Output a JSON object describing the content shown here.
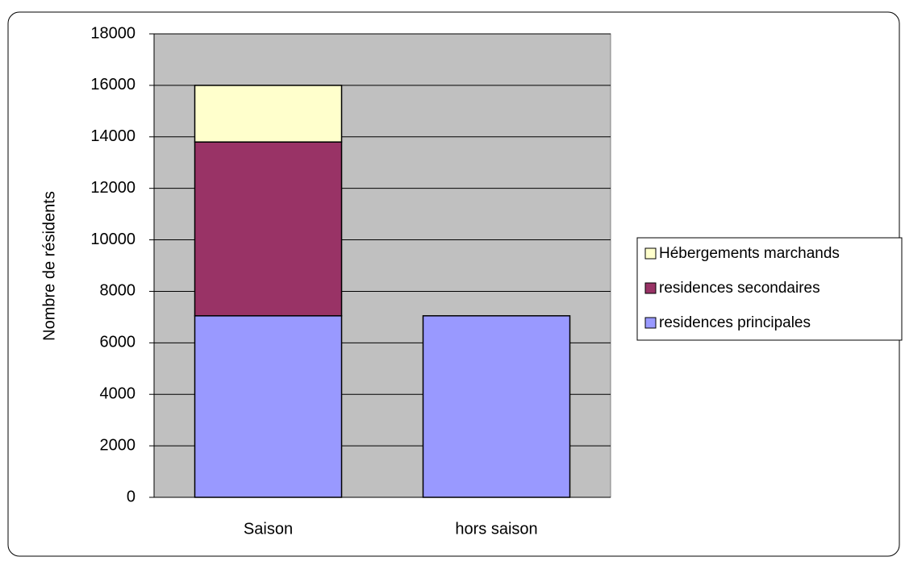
{
  "chart_data": {
    "type": "bar",
    "stacked": true,
    "y_label": "Nombre de résidents",
    "categories": [
      "Saison",
      "hors saison"
    ],
    "series": [
      {
        "name": "residences principales",
        "color": "#9999ff",
        "values": [
          7050,
          7050
        ]
      },
      {
        "name": "residences secondaires",
        "color": "#993366",
        "values": [
          6750,
          0
        ]
      },
      {
        "name": "Hébergements marchands",
        "color": "#ffffcc",
        "values": [
          2200,
          0
        ]
      }
    ],
    "ylim": [
      0,
      18000
    ],
    "yticks": [
      0,
      2000,
      4000,
      6000,
      8000,
      10000,
      12000,
      14000,
      16000,
      18000
    ],
    "grid": true,
    "plot_background": "#c0c0c0",
    "legend": "right"
  }
}
